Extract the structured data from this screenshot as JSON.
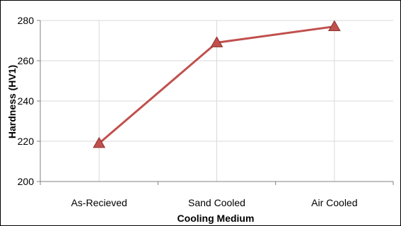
{
  "chart_data": {
    "type": "line",
    "title": "",
    "xlabel": "Cooling Medium",
    "ylabel": "Hardness (HV1)",
    "categories": [
      "As-Recieved",
      "Sand Cooled",
      "Air Cooled"
    ],
    "series": [
      {
        "values": [
          219,
          269,
          277
        ],
        "color": "#c0504d",
        "marker": "triangle"
      }
    ],
    "ylim": [
      200,
      280
    ],
    "yticks": [
      200,
      220,
      240,
      260,
      280
    ],
    "grid": {
      "x": true,
      "y": true
    },
    "legend": "none"
  }
}
